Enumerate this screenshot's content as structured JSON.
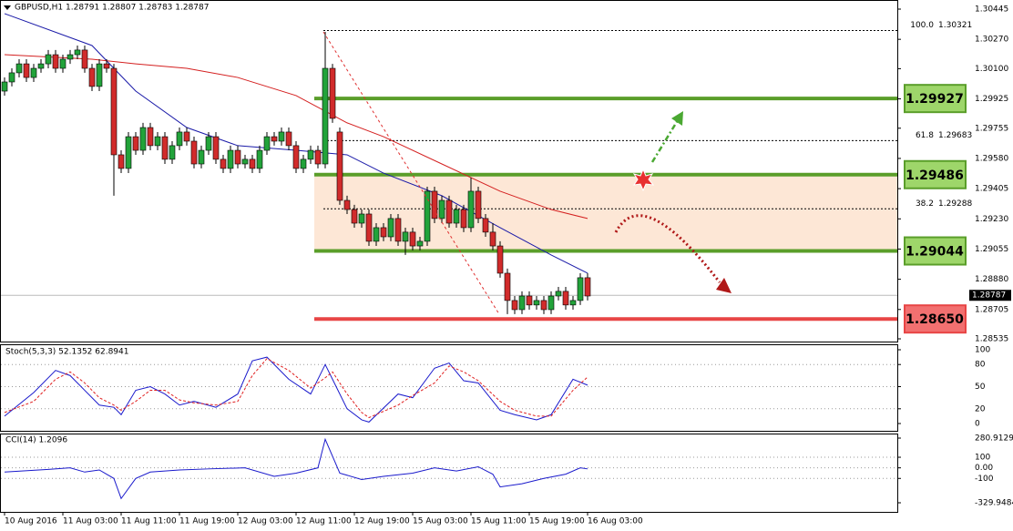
{
  "chart_data": [
    {
      "type": "candlestick",
      "title": "GBPUSD,H1 1.28791 1.28807 1.28783 1.28787",
      "up_color": "#22a33a",
      "down_color": "#d12b2b",
      "ylim": [
        1.28535,
        1.30445
      ],
      "yticks": [
        1.30445,
        {
          "value": 1.3027,
          "label": "1.30270"
        },
        {
          "value": 1.301,
          "label": "1.30100"
        },
        1.29925,
        1.29755,
        {
          "value": 1.2958,
          "label": "1.29580"
        },
        1.29405,
        {
          "value": 1.2923,
          "label": "1.29230"
        },
        1.29055,
        {
          "value": 1.2888,
          "label": "1.28880"
        },
        1.28705,
        1.28535
      ],
      "categories": [
        "10 Aug 2016",
        null,
        null,
        null,
        null,
        null,
        null,
        null,
        "11 Aug 03:00",
        null,
        null,
        null,
        null,
        null,
        null,
        null,
        "11 Aug 11:00",
        null,
        null,
        null,
        null,
        null,
        null,
        null,
        "11 Aug 19:00",
        null,
        null,
        null,
        null,
        null,
        null,
        null,
        "12 Aug 03:00",
        null,
        null,
        null,
        null,
        null,
        null,
        null,
        "12 Aug 11:00",
        null,
        null,
        null,
        null,
        null,
        null,
        null,
        "12 Aug 19:00",
        null,
        null,
        null,
        null,
        null,
        null,
        null,
        "15 Aug 03:00",
        null,
        null,
        null,
        null,
        null,
        null,
        null,
        "15 Aug 11:00",
        null,
        null,
        null,
        null,
        null,
        null,
        null,
        "15 Aug 19:00",
        null,
        null,
        null,
        null,
        null,
        null,
        null,
        "16 Aug 03:00"
      ],
      "ohlc": [
        [
          1.2997,
          1.30049,
          1.29944,
          1.30023
        ],
        [
          1.30023,
          1.30102,
          1.29997,
          1.30076
        ],
        [
          1.30076,
          1.30155,
          1.30049,
          1.30128
        ],
        [
          1.30128,
          1.30155,
          1.30023,
          1.30049
        ],
        [
          1.30049,
          1.30128,
          1.30023,
          1.30102
        ],
        [
          1.30102,
          1.30155,
          1.30076,
          1.30128
        ],
        [
          1.30128,
          1.30208,
          1.30102,
          1.30181
        ],
        [
          1.30181,
          1.30208,
          1.30076,
          1.30102
        ],
        [
          1.30102,
          1.30181,
          1.30076,
          1.30155
        ],
        [
          1.30155,
          1.30208,
          1.30128,
          1.30181
        ],
        [
          1.30181,
          1.30234,
          1.30155,
          1.30208
        ],
        [
          1.30208,
          1.30234,
          1.30076,
          1.30102
        ],
        [
          1.30102,
          1.30128,
          1.2997,
          1.29997
        ],
        [
          1.29997,
          1.30155,
          1.2997,
          1.30128
        ],
        [
          1.30128,
          1.30155,
          1.30076,
          1.30102
        ],
        [
          1.30102,
          1.30128,
          1.29364,
          1.29601
        ],
        [
          1.29601,
          1.29627,
          1.29495,
          1.29522
        ],
        [
          1.29522,
          1.29733,
          1.29495,
          1.29706
        ],
        [
          1.29706,
          1.29733,
          1.29601,
          1.29627
        ],
        [
          1.29627,
          1.29786,
          1.29601,
          1.29759
        ],
        [
          1.29759,
          1.29786,
          1.29627,
          1.29654
        ],
        [
          1.29654,
          1.29733,
          1.29627,
          1.29706
        ],
        [
          1.29706,
          1.29733,
          1.29548,
          1.29575
        ],
        [
          1.29575,
          1.2968,
          1.29548,
          1.29654
        ],
        [
          1.29654,
          1.29759,
          1.29627,
          1.29733
        ],
        [
          1.29733,
          1.29759,
          1.29654,
          1.2968
        ],
        [
          1.2968,
          1.29706,
          1.29522,
          1.29548
        ],
        [
          1.29548,
          1.29654,
          1.29522,
          1.29627
        ],
        [
          1.29627,
          1.29733,
          1.29601,
          1.29706
        ],
        [
          1.29706,
          1.29733,
          1.29548,
          1.29575
        ],
        [
          1.29575,
          1.29601,
          1.29495,
          1.29522
        ],
        [
          1.29522,
          1.29654,
          1.29495,
          1.29627
        ],
        [
          1.29627,
          1.29654,
          1.29522,
          1.29548
        ],
        [
          1.29548,
          1.29601,
          1.29522,
          1.29575
        ],
        [
          1.29575,
          1.29601,
          1.29495,
          1.29522
        ],
        [
          1.29522,
          1.29654,
          1.29495,
          1.29627
        ],
        [
          1.29627,
          1.29733,
          1.29601,
          1.29706
        ],
        [
          1.29706,
          1.29733,
          1.29654,
          1.2968
        ],
        [
          1.2968,
          1.29759,
          1.29654,
          1.29733
        ],
        [
          1.29733,
          1.29759,
          1.29627,
          1.29654
        ],
        [
          1.29654,
          1.2968,
          1.29495,
          1.29522
        ],
        [
          1.29522,
          1.29601,
          1.29495,
          1.29575
        ],
        [
          1.29575,
          1.29654,
          1.29548,
          1.29627
        ],
        [
          1.29627,
          1.29654,
          1.29522,
          1.29548
        ],
        [
          1.29548,
          1.30313,
          1.29522,
          1.30102
        ],
        [
          1.30102,
          1.30128,
          1.29786,
          1.29812
        ],
        [
          1.29733,
          1.29759,
          1.29311,
          1.29337
        ],
        [
          1.29337,
          1.29364,
          1.29258,
          1.29284
        ],
        [
          1.29284,
          1.29311,
          1.29179,
          1.29205
        ],
        [
          1.29205,
          1.29284,
          1.29179,
          1.29258
        ],
        [
          1.29258,
          1.29284,
          1.29073,
          1.291
        ],
        [
          1.291,
          1.29205,
          1.29073,
          1.29179
        ],
        [
          1.29179,
          1.29205,
          1.291,
          1.29126
        ],
        [
          1.29126,
          1.29258,
          1.291,
          1.29232
        ],
        [
          1.29232,
          1.29258,
          1.29073,
          1.291
        ],
        [
          1.291,
          1.29179,
          1.29021,
          1.29153
        ],
        [
          1.29153,
          1.29179,
          1.29047,
          1.29073
        ],
        [
          1.29073,
          1.29126,
          1.29047,
          1.291
        ],
        [
          1.291,
          1.29416,
          1.29073,
          1.2939
        ],
        [
          1.2939,
          1.29416,
          1.29205,
          1.29232
        ],
        [
          1.29232,
          1.29364,
          1.29205,
          1.29337
        ],
        [
          1.29337,
          1.29364,
          1.29179,
          1.29205
        ],
        [
          1.29205,
          1.29311,
          1.29179,
          1.29284
        ],
        [
          1.29284,
          1.29311,
          1.29153,
          1.29179
        ],
        [
          1.29179,
          1.29469,
          1.29153,
          1.2939
        ],
        [
          1.2939,
          1.29416,
          1.29205,
          1.29232
        ],
        [
          1.29232,
          1.29258,
          1.29126,
          1.29153
        ],
        [
          1.29153,
          1.29205,
          1.29047,
          1.29073
        ],
        [
          1.29073,
          1.291,
          1.28889,
          1.28915
        ],
        [
          1.28915,
          1.28942,
          1.28678,
          1.28757
        ],
        [
          1.28757,
          1.28783,
          1.28678,
          1.28704
        ],
        [
          1.28704,
          1.2881,
          1.28678,
          1.28783
        ],
        [
          1.28783,
          1.2881,
          1.28704,
          1.28731
        ],
        [
          1.28731,
          1.28783,
          1.28704,
          1.28757
        ],
        [
          1.28757,
          1.28783,
          1.28678,
          1.28704
        ],
        [
          1.28704,
          1.2881,
          1.28678,
          1.28783
        ],
        [
          1.28783,
          1.28836,
          1.28757,
          1.2881
        ],
        [
          1.2881,
          1.28836,
          1.28704,
          1.28731
        ],
        [
          1.28731,
          1.28783,
          1.28704,
          1.28757
        ],
        [
          1.28757,
          1.28915,
          1.28731,
          1.28889
        ],
        [
          1.28889,
          1.28915,
          1.28757,
          1.28783
        ]
      ],
      "series": [
        {
          "color": "#1a1aa8",
          "x": [
            0,
            12,
            18,
            25,
            32,
            40,
            47,
            52,
            60,
            68,
            75,
            80
          ],
          "values": [
            1.30419,
            1.30234,
            1.2997,
            1.29759,
            1.29654,
            1.29627,
            1.29601,
            1.29495,
            1.29364,
            1.29179,
            1.29021,
            1.28915
          ]
        },
        {
          "color": "#d42020",
          "x": [
            0,
            12,
            18,
            25,
            32,
            40,
            47,
            52,
            60,
            68,
            75,
            80
          ],
          "values": [
            1.30181,
            1.30155,
            1.30128,
            1.30102,
            1.30049,
            1.29944,
            1.29786,
            1.29706,
            1.29548,
            1.2939,
            1.29284,
            1.29232
          ]
        }
      ],
      "levels": [
        {
          "value": 1.29927,
          "color": "#5a9e2a",
          "box": "#9ed66a"
        },
        {
          "value": 1.29486,
          "color": "#5a9e2a",
          "box": "#9ed66a"
        },
        {
          "value": 1.29044,
          "color": "#5a9e2a",
          "box": "#9ed66a"
        },
        {
          "value": 1.2865,
          "label": "1.28650",
          "color": "#e84545",
          "box": "#f27070"
        }
      ],
      "zone_color": "#fde7d6",
      "fib": [
        {
          "level": "100.0",
          "price": 1.30321
        },
        {
          "level": "61.8",
          "price": 1.29683
        },
        {
          "level": "38.2",
          "price": 1.29288
        }
      ],
      "last": 1.28787
    },
    {
      "type": "line",
      "title": "Stoch(5,3,3) 52.1352 62.8941",
      "ylim": [
        0,
        100
      ],
      "yticks": [
        0,
        20,
        50,
        80,
        100
      ],
      "grid": true,
      "series": [
        {
          "color": "#1a1acc",
          "x": [
            0,
            4,
            7,
            9,
            11,
            13,
            15,
            16,
            18,
            20,
            22,
            24,
            26,
            29,
            32,
            34,
            36,
            39,
            42,
            44,
            45,
            47,
            49,
            50,
            54,
            56,
            59,
            61,
            63,
            65,
            68,
            70,
            73,
            75,
            78,
            80
          ],
          "values": [
            10,
            42,
            72,
            65,
            45,
            25,
            22,
            12,
            45,
            50,
            40,
            25,
            30,
            22,
            40,
            85,
            90,
            60,
            40,
            80,
            60,
            20,
            5,
            2,
            40,
            35,
            75,
            82,
            58,
            55,
            18,
            12,
            5,
            12,
            60,
            52
          ]
        },
        {
          "color": "#e02020",
          "dashed": true,
          "x": [
            0,
            4,
            7,
            9,
            11,
            13,
            15,
            16,
            18,
            20,
            22,
            24,
            26,
            29,
            32,
            34,
            36,
            39,
            42,
            44,
            45,
            47,
            49,
            50,
            54,
            56,
            59,
            61,
            63,
            65,
            68,
            70,
            73,
            75,
            78,
            80
          ],
          "values": [
            15,
            30,
            60,
            70,
            55,
            35,
            25,
            18,
            30,
            45,
            45,
            32,
            28,
            25,
            30,
            65,
            88,
            72,
            48,
            62,
            70,
            40,
            15,
            8,
            25,
            38,
            55,
            78,
            70,
            58,
            30,
            18,
            10,
            10,
            45,
            63
          ]
        }
      ]
    },
    {
      "type": "line",
      "title": "CCI(14) 1.2096",
      "ylim": [
        -329.9484,
        280.9129
      ],
      "yticks": [
        280.9129,
        100,
        {
          "value": 0,
          "label": "0.00"
        },
        -100,
        -329.9484
      ],
      "grid": true,
      "series": [
        {
          "color": "#1a1acc",
          "x": [
            0,
            6,
            9,
            11,
            13,
            15,
            16,
            18,
            20,
            24,
            28,
            33,
            37,
            40,
            43,
            44,
            46,
            49,
            52,
            56,
            59,
            62,
            65,
            67,
            68,
            71,
            74,
            77,
            79,
            80
          ],
          "values": [
            -40,
            -15,
            0,
            -40,
            -20,
            -100,
            -290,
            -100,
            -40,
            -20,
            -10,
            0,
            -80,
            -50,
            0,
            270,
            -50,
            -110,
            -80,
            -50,
            0,
            -30,
            10,
            -60,
            -180,
            -150,
            -100,
            -60,
            0,
            -10
          ]
        }
      ]
    }
  ]
}
